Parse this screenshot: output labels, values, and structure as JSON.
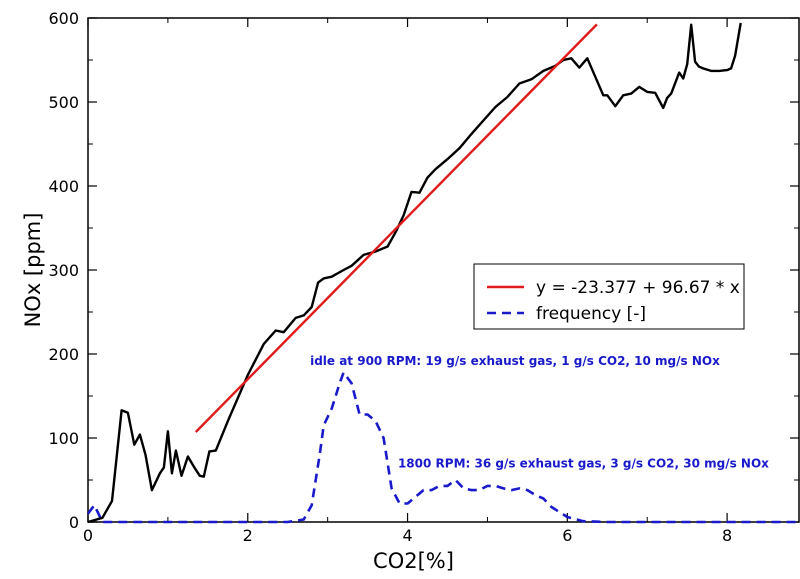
{
  "chart_data": {
    "type": "line",
    "xlabel": "CO2[%]",
    "ylabel": "NOx [ppm]",
    "xlim": [
      0,
      8.9
    ],
    "ylim": [
      0,
      600
    ],
    "xticks": [
      0,
      2,
      4,
      6,
      8
    ],
    "yticks": [
      0,
      100,
      200,
      300,
      400,
      500,
      600
    ],
    "grid": false,
    "legend_position": "right-middle",
    "series": [
      {
        "name": "",
        "role": "measurement",
        "color": "#000000",
        "style": "solid",
        "x": [
          0.0,
          0.18,
          0.3,
          0.42,
          0.5,
          0.58,
          0.65,
          0.72,
          0.8,
          0.9,
          0.95,
          1.0,
          1.05,
          1.1,
          1.17,
          1.25,
          1.33,
          1.4,
          1.45,
          1.52,
          1.6,
          1.75,
          2.0,
          2.2,
          2.35,
          2.45,
          2.6,
          2.7,
          2.8,
          2.88,
          2.95,
          3.05,
          3.2,
          3.3,
          3.45,
          3.6,
          3.75,
          3.85,
          3.95,
          4.05,
          4.15,
          4.25,
          4.35,
          4.5,
          4.65,
          4.8,
          4.95,
          5.1,
          5.25,
          5.4,
          5.55,
          5.7,
          5.85,
          5.95,
          6.05,
          6.15,
          6.25,
          6.35,
          6.45,
          6.5,
          6.6,
          6.7,
          6.8,
          6.9,
          7.0,
          7.1,
          7.2,
          7.25,
          7.3,
          7.4,
          7.45,
          7.5,
          7.55,
          7.6,
          7.65,
          7.7,
          7.8,
          7.9,
          8.0,
          8.05,
          8.1,
          8.17
        ],
        "y": [
          0,
          5,
          25,
          133,
          130,
          92,
          104,
          80,
          38,
          58,
          65,
          108,
          58,
          85,
          55,
          78,
          65,
          55,
          54,
          84,
          85,
          120,
          175,
          212,
          228,
          226,
          243,
          246,
          256,
          285,
          290,
          292,
          300,
          305,
          318,
          322,
          328,
          345,
          365,
          393,
          392,
          410,
          420,
          432,
          445,
          462,
          478,
          494,
          506,
          522,
          527,
          537,
          543,
          550,
          552,
          541,
          552,
          530,
          508,
          508,
          495,
          508,
          510,
          518,
          512,
          511,
          493,
          505,
          510,
          535,
          528,
          545,
          592,
          548,
          542,
          540,
          537,
          537,
          538,
          540,
          555,
          594
        ]
      },
      {
        "name": "y = -23.377 + 96.67 * x",
        "role": "fit",
        "color": "#e01b1b",
        "style": "solid",
        "x": [
          1.35,
          6.37
        ],
        "y": [
          107.1,
          592.4
        ]
      },
      {
        "name": "frequency [-]",
        "role": "frequency",
        "color": "#1a1acc",
        "style": "dashed",
        "x": [
          0.0,
          0.08,
          0.18,
          0.3,
          0.5,
          1.0,
          1.5,
          2.0,
          2.5,
          2.7,
          2.8,
          2.9,
          2.95,
          3.0,
          3.05,
          3.1,
          3.15,
          3.2,
          3.3,
          3.4,
          3.5,
          3.6,
          3.7,
          3.8,
          3.9,
          4.0,
          4.1,
          4.2,
          4.3,
          4.4,
          4.5,
          4.6,
          4.7,
          4.8,
          4.9,
          5.0,
          5.1,
          5.2,
          5.3,
          5.4,
          5.5,
          5.6,
          5.7,
          5.8,
          6.0,
          6.2,
          6.5,
          7.0,
          7.5,
          8.0,
          8.9
        ],
        "y": [
          10,
          20,
          0,
          0,
          0,
          0,
          0,
          0,
          0,
          3,
          20,
          80,
          115,
          125,
          135,
          150,
          165,
          178,
          165,
          128,
          128,
          120,
          100,
          40,
          22,
          22,
          30,
          38,
          38,
          43,
          43,
          50,
          40,
          38,
          38,
          43,
          43,
          40,
          38,
          40,
          38,
          32,
          28,
          18,
          6,
          1,
          0,
          0,
          0,
          0,
          0
        ]
      }
    ],
    "annotations": [
      {
        "text": "idle at 900 RPM: 19 g/s exhaust gas, 1 g/s CO2, 10 mg/s NOx",
        "x": 2.78,
        "y": 187
      },
      {
        "text": "1800 RPM: 36 g/s exhaust gas, 3 g/s CO2, 30 mg/s NOx",
        "x": 3.88,
        "y": 65
      }
    ]
  }
}
